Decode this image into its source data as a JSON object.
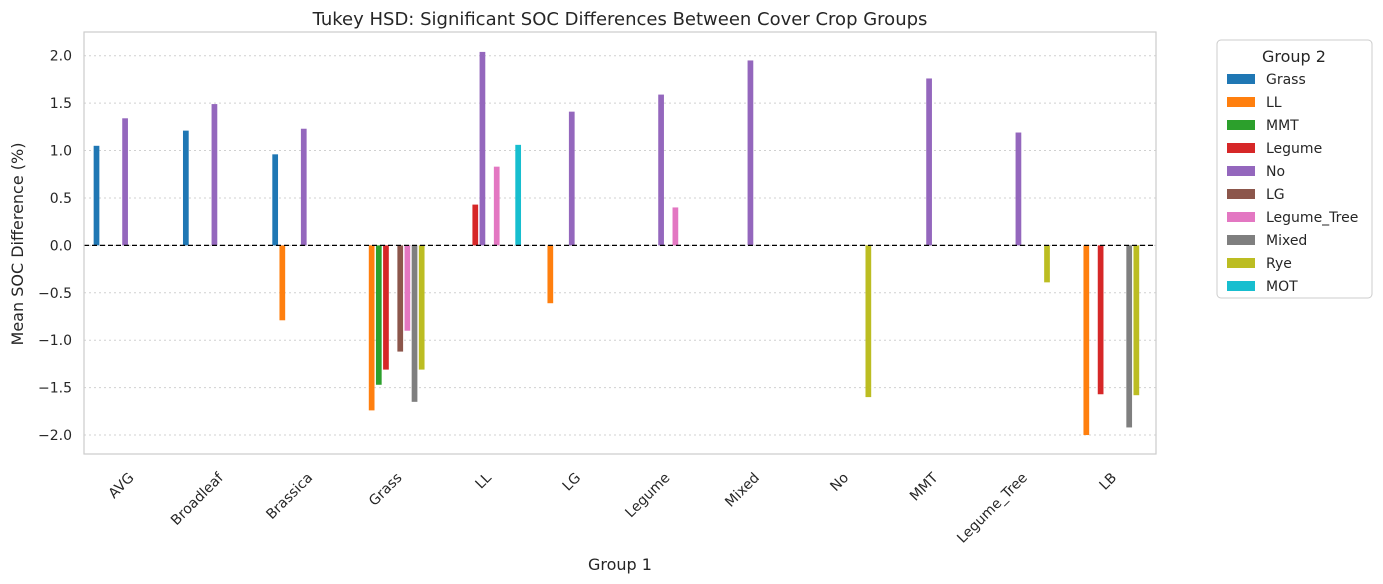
{
  "chart_data": {
    "type": "bar",
    "title": "Tukey HSD: Significant SOC Differences Between Cover Crop Groups",
    "xlabel": "Group 1",
    "ylabel": "Mean SOC Difference (%)",
    "ylim": [
      -2.2,
      2.25
    ],
    "yticks": [
      2.0,
      1.5,
      1.0,
      0.5,
      0.0,
      -0.5,
      -1.0,
      -1.5,
      -2.0
    ],
    "ytick_labels": [
      "2.0",
      "1.5",
      "1.0",
      "0.5",
      "0.0",
      "−0.5",
      "−1.0",
      "−1.5",
      "−2.0"
    ],
    "grid": true,
    "reference_line": 0,
    "legend_title": "Group 2",
    "legend_position": "outside-right",
    "categories": [
      "AVG",
      "Broadleaf",
      "Brassica",
      "Grass",
      "LL",
      "LG",
      "Legume",
      "Mixed",
      "No",
      "MMT",
      "Legume_Tree",
      "LB"
    ],
    "series": [
      {
        "name": "Grass",
        "color": "#1f77b4",
        "values": [
          1.05,
          1.21,
          0.96,
          null,
          null,
          null,
          null,
          null,
          null,
          null,
          null,
          null
        ]
      },
      {
        "name": "LL",
        "color": "#ff7f0e",
        "values": [
          null,
          null,
          -0.79,
          -1.74,
          null,
          -0.61,
          null,
          null,
          null,
          null,
          null,
          -2.0
        ]
      },
      {
        "name": "MMT",
        "color": "#2ca02c",
        "values": [
          null,
          null,
          null,
          -1.47,
          null,
          null,
          null,
          null,
          null,
          null,
          null,
          null
        ]
      },
      {
        "name": "Legume",
        "color": "#d62728",
        "values": [
          null,
          null,
          null,
          -1.31,
          0.43,
          null,
          null,
          null,
          null,
          null,
          null,
          -1.57
        ]
      },
      {
        "name": "No",
        "color": "#9467bd",
        "values": [
          1.34,
          1.49,
          1.23,
          null,
          2.04,
          1.41,
          1.59,
          1.95,
          null,
          1.76,
          1.19,
          null
        ]
      },
      {
        "name": "LG",
        "color": "#8c564b",
        "values": [
          null,
          null,
          null,
          -1.12,
          null,
          null,
          null,
          null,
          null,
          null,
          null,
          null
        ]
      },
      {
        "name": "Legume_Tree",
        "color": "#e377c2",
        "values": [
          null,
          null,
          null,
          -0.9,
          0.83,
          null,
          0.4,
          null,
          null,
          null,
          null,
          null
        ]
      },
      {
        "name": "Mixed",
        "color": "#7f7f7f",
        "values": [
          null,
          null,
          null,
          -1.65,
          null,
          null,
          null,
          null,
          null,
          null,
          null,
          -1.92
        ]
      },
      {
        "name": "Rye",
        "color": "#bcbd22",
        "values": [
          null,
          null,
          null,
          -1.31,
          null,
          null,
          null,
          null,
          -1.6,
          null,
          -0.39,
          -1.58
        ]
      },
      {
        "name": "MOT",
        "color": "#17becf",
        "values": [
          null,
          null,
          null,
          null,
          1.06,
          null,
          null,
          null,
          null,
          null,
          null,
          null
        ]
      }
    ]
  }
}
